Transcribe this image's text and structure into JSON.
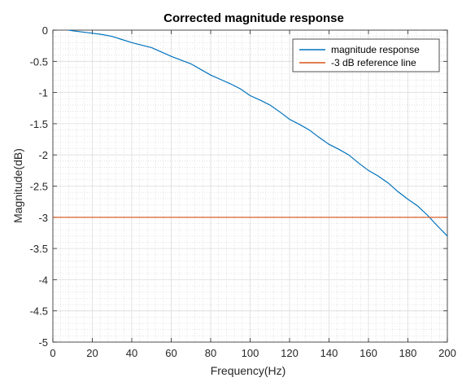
{
  "chart_data": {
    "type": "line",
    "title": "Corrected magnitude response",
    "xlabel": "Frequency(Hz)",
    "ylabel": "Magnitude(dB)",
    "xlim": [
      0,
      200
    ],
    "ylim": [
      -5,
      0
    ],
    "x_ticks": [
      0,
      20,
      40,
      60,
      80,
      100,
      120,
      140,
      160,
      180,
      200
    ],
    "y_ticks": [
      0,
      -0.5,
      -1,
      -1.5,
      -2,
      -2.5,
      -3,
      -3.5,
      -4,
      -4.5,
      -5
    ],
    "x_tick_labels": [
      "0",
      "20",
      "40",
      "60",
      "80",
      "100",
      "120",
      "140",
      "160",
      "180",
      "200"
    ],
    "y_tick_labels": [
      "0",
      "-0.5",
      "-1",
      "-1.5",
      "-2",
      "-2.5",
      "-3",
      "-3.5",
      "-4",
      "-4.5",
      "-5"
    ],
    "grid": true,
    "minor_grid": true,
    "legend_position": "top-right",
    "series": [
      {
        "name": "magnitude response",
        "color": "#0072BD",
        "x": [
          8,
          10,
          15,
          20,
          25,
          30,
          35,
          40,
          45,
          50,
          55,
          60,
          65,
          70,
          75,
          80,
          85,
          90,
          95,
          100,
          105,
          110,
          115,
          120,
          125,
          130,
          135,
          140,
          145,
          150,
          155,
          160,
          165,
          170,
          175,
          180,
          185,
          190,
          195,
          200
        ],
        "y": [
          0.0,
          -0.01,
          -0.03,
          -0.05,
          -0.07,
          -0.1,
          -0.15,
          -0.2,
          -0.24,
          -0.28,
          -0.35,
          -0.42,
          -0.48,
          -0.54,
          -0.63,
          -0.72,
          -0.79,
          -0.86,
          -0.94,
          -1.05,
          -1.12,
          -1.2,
          -1.31,
          -1.43,
          -1.51,
          -1.6,
          -1.72,
          -1.83,
          -1.91,
          -2.0,
          -2.13,
          -2.25,
          -2.34,
          -2.45,
          -2.59,
          -2.71,
          -2.82,
          -2.97,
          -3.14,
          -3.3
        ]
      },
      {
        "name": "-3 dB reference line",
        "color": "#D95319",
        "x": [
          0,
          200
        ],
        "y": [
          -3,
          -3
        ]
      }
    ]
  }
}
